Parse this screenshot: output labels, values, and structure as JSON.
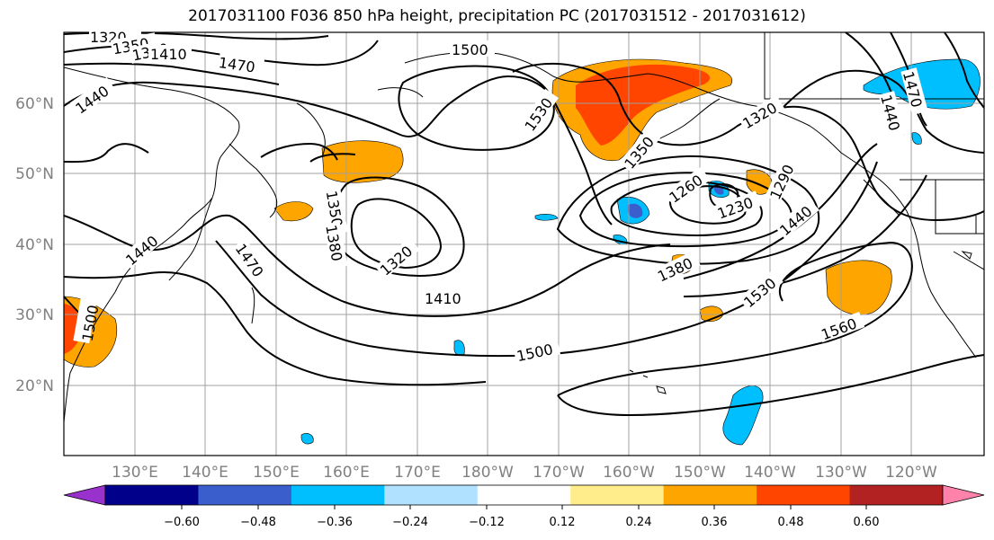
{
  "title": "2017031100 F036 850 hPa height, precipitation PC (2017031512 - 2017031612)",
  "lat_labels": [
    "60°N",
    "50°N",
    "40°N",
    "30°N",
    "20°N"
  ],
  "lon_labels": [
    "130°E",
    "140°E",
    "150°E",
    "160°E",
    "170°E",
    "180°W",
    "170°W",
    "160°W",
    "150°W",
    "140°W",
    "130°W",
    "120°W"
  ],
  "contour_labels": [
    "1320",
    "1350",
    "1380",
    "1410",
    "1470",
    "1440",
    "1500",
    "1530",
    "1320",
    "1350",
    "1260",
    "1230",
    "1290",
    "1440",
    "1350",
    "1380",
    "1320",
    "1440",
    "1470",
    "1410",
    "1380",
    "1500",
    "1530",
    "1560",
    "1500",
    "1470",
    "1440"
  ],
  "colorbar": {
    "colors": [
      "#9932cc",
      "#00008b",
      "#3a5fcd",
      "#00bfff",
      "#b0e2ff",
      "#ffffff",
      "#ffec8b",
      "#ffa500",
      "#ff4500",
      "#b22222",
      "#ff82ab"
    ],
    "tick_labels": [
      "−0.60",
      "−0.48",
      "−0.36",
      "−0.24",
      "−0.12",
      "0.12",
      "0.24",
      "0.36",
      "0.48",
      "0.60"
    ]
  }
}
